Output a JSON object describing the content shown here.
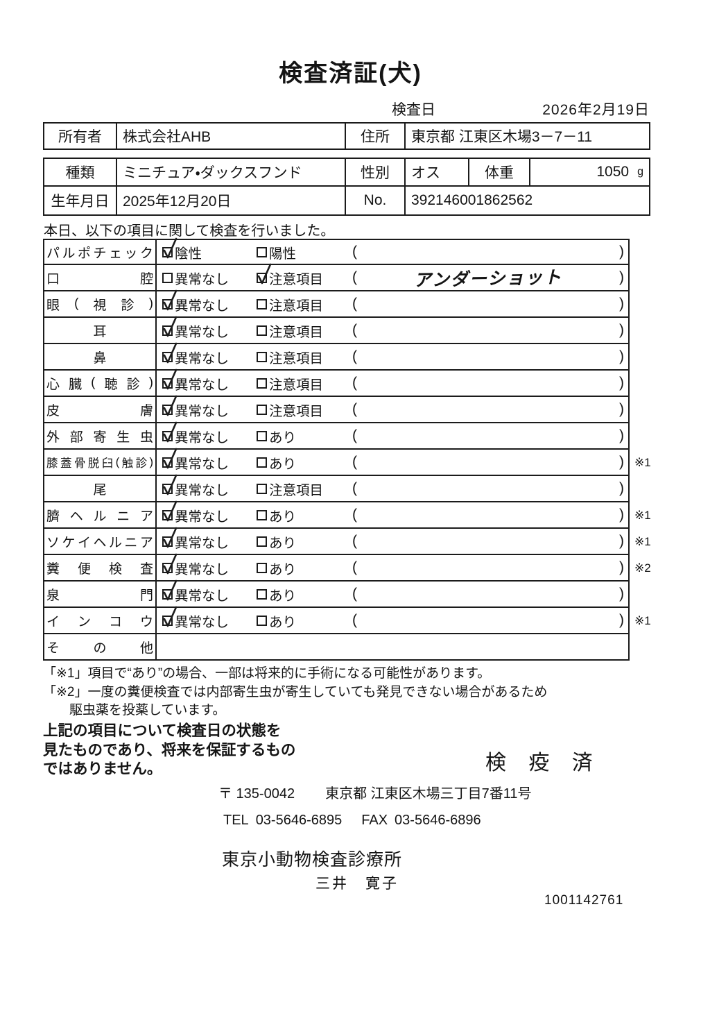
{
  "title": "検査済証(犬)",
  "inspection_date": {
    "label": "検査日",
    "value": "2026年2月19日"
  },
  "owner_table": {
    "owner_label": "所有者",
    "owner_value": "株式会社AHB",
    "address_label": "住所",
    "address_value": "東京都 江東区木場3－7－11"
  },
  "info_table": {
    "breed_label": "種類",
    "breed_value": "ミニチュア・ダックスフンド",
    "sex_label": "性別",
    "sex_value": "オス",
    "weight_label": "体重",
    "weight_value": "1050",
    "weight_unit": "g",
    "birth_label": "生年月日",
    "birth_value": "2025年12月20日",
    "no_label": "No.",
    "no_value": "392146001862562"
  },
  "intro": "本日、以下の項目に関して検査を行いました。",
  "checklist": {
    "rows": [
      {
        "label": "パルポチェック",
        "opt1": "陰性",
        "opt1_checked": true,
        "opt2": "陽性",
        "opt2_checked": false,
        "paren": "",
        "note": ""
      },
      {
        "label": "口腔",
        "opt1": "異常なし",
        "opt1_checked": false,
        "opt2": "注意項目",
        "opt2_checked": true,
        "paren": "アンダーショット",
        "note": ""
      },
      {
        "label": "眼(視診)",
        "opt1": "異常なし",
        "opt1_checked": true,
        "opt2": "注意項目",
        "opt2_checked": false,
        "paren": "",
        "note": ""
      },
      {
        "label": "耳",
        "opt1": "異常なし",
        "opt1_checked": true,
        "opt2": "注意項目",
        "opt2_checked": false,
        "paren": "",
        "note": ""
      },
      {
        "label": "鼻",
        "opt1": "異常なし",
        "opt1_checked": true,
        "opt2": "注意項目",
        "opt2_checked": false,
        "paren": "",
        "note": ""
      },
      {
        "label": "心臓(聴診)",
        "opt1": "異常なし",
        "opt1_checked": true,
        "opt2": "注意項目",
        "opt2_checked": false,
        "paren": "",
        "note": ""
      },
      {
        "label": "皮膚",
        "opt1": "異常なし",
        "opt1_checked": true,
        "opt2": "注意項目",
        "opt2_checked": false,
        "paren": "",
        "note": ""
      },
      {
        "label": "外部寄生虫",
        "opt1": "異常なし",
        "opt1_checked": true,
        "opt2": "あり",
        "opt2_checked": false,
        "paren": "",
        "note": ""
      },
      {
        "label": "膝蓋骨脱臼(触診)",
        "small": true,
        "opt1": "異常なし",
        "opt1_checked": true,
        "opt2": "あり",
        "opt2_checked": false,
        "paren": "",
        "note": "※1"
      },
      {
        "label": "尾",
        "opt1": "異常なし",
        "opt1_checked": true,
        "opt2": "注意項目",
        "opt2_checked": false,
        "paren": "",
        "note": ""
      },
      {
        "label": "臍ヘルニア",
        "opt1": "異常なし",
        "opt1_checked": true,
        "opt2": "あり",
        "opt2_checked": false,
        "paren": "",
        "note": "※1"
      },
      {
        "label": "ソケイヘルニア",
        "opt1": "異常なし",
        "opt1_checked": true,
        "opt2": "あり",
        "opt2_checked": false,
        "paren": "",
        "note": "※1"
      },
      {
        "label": "糞便検査",
        "opt1": "異常なし",
        "opt1_checked": true,
        "opt2": "あり",
        "opt2_checked": false,
        "paren": "",
        "note": "※2"
      },
      {
        "label": "泉門",
        "opt1": "異常なし",
        "opt1_checked": true,
        "opt2": "あり",
        "opt2_checked": false,
        "paren": "",
        "note": ""
      },
      {
        "label": "インコウ",
        "opt1": "異常なし",
        "opt1_checked": true,
        "opt2": "あり",
        "opt2_checked": false,
        "paren": "",
        "note": "※1"
      },
      {
        "label": "その他",
        "opt1": "",
        "opt1_checked": false,
        "opt2": "",
        "opt2_checked": false,
        "paren": "",
        "note": ""
      }
    ]
  },
  "footnotes": [
    "「※1」項目で“あり”の場合、一部は将来的に手術になる可能性があります。",
    "「※2」一度の糞便検査では内部寄生虫が寄生していても発見できない場合があるため",
    "駆虫薬を投薬しています。"
  ],
  "disclaimer": [
    "上記の項目について検査日の状態を",
    "見たものであり、将来を保証するもの",
    "ではありません。"
  ],
  "stamp": "検 疫 済",
  "contact": {
    "postal": "〒 135-0042",
    "address": "東京都 江東区木場三丁目7番11号",
    "tel_label": "TEL",
    "tel": "03-5646-6895",
    "fax_label": "FAX",
    "fax": "03-5646-6896"
  },
  "clinic_name": "東京小動物検査診療所",
  "examiner_name": "三井　寛子",
  "doc_number": "1001142761"
}
